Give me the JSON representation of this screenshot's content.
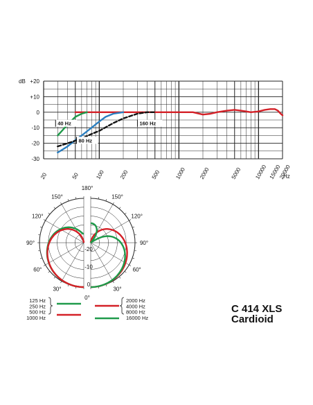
{
  "colors": {
    "red": "#d42027",
    "green": "#1f9a4a",
    "blue": "#2a7fc1",
    "black": "#111111",
    "grid": "#222222"
  },
  "product": {
    "model": "C 414 XLS",
    "pattern": "Cardioid"
  },
  "chart_data": [
    {
      "type": "line",
      "xscale": "log",
      "xlim": [
        20,
        20000
      ],
      "ylim": [
        -30,
        20
      ],
      "y_unit_label": "dB",
      "x_unit_label": "Hz",
      "x_tick_labels": [
        "20",
        "50",
        "100",
        "200",
        "500",
        "1000",
        "2000",
        "5000",
        "10000",
        "15000",
        "20000"
      ],
      "x_ticks": [
        20,
        50,
        100,
        200,
        500,
        1000,
        2000,
        5000,
        10000,
        15000,
        20000
      ],
      "y_tick_labels": [
        "+20",
        "+10",
        "0",
        "-10",
        "-20",
        "-30"
      ],
      "y_ticks": [
        20,
        10,
        0,
        -10,
        -20,
        -30
      ],
      "grid": true,
      "series": [
        {
          "color_key": "red",
          "dash": false,
          "points": [
            [
              50,
              0
            ],
            [
              100,
              0
            ],
            [
              200,
              0
            ],
            [
              500,
              0
            ],
            [
              1000,
              0
            ],
            [
              1500,
              0
            ],
            [
              2000,
              -1.5
            ],
            [
              2500,
              -1
            ],
            [
              3000,
              0
            ],
            [
              4000,
              1
            ],
            [
              5000,
              1.5
            ],
            [
              6000,
              1
            ],
            [
              7000,
              0.5
            ],
            [
              8000,
              0
            ],
            [
              10000,
              0.5
            ],
            [
              12000,
              1.5
            ],
            [
              14000,
              2
            ],
            [
              16000,
              2
            ],
            [
              17500,
              1
            ],
            [
              19000,
              -1
            ],
            [
              20000,
              -2
            ]
          ]
        },
        {
          "color_key": "green",
          "dash": false,
          "points": [
            [
              30,
              -15
            ],
            [
              40,
              -8
            ],
            [
              50,
              -3
            ],
            [
              60,
              -1
            ],
            [
              70,
              0
            ]
          ]
        },
        {
          "color_key": "blue",
          "dash": false,
          "points": [
            [
              30,
              -26
            ],
            [
              40,
              -22
            ],
            [
              50,
              -18
            ],
            [
              60,
              -15
            ],
            [
              80,
              -10
            ],
            [
              100,
              -6
            ],
            [
              120,
              -3
            ],
            [
              150,
              -1
            ],
            [
              200,
              0
            ]
          ]
        },
        {
          "color_key": "black",
          "dash": true,
          "points": [
            [
              30,
              -22
            ],
            [
              40,
              -20
            ],
            [
              60,
              -17
            ],
            [
              80,
              -14
            ],
            [
              100,
              -12
            ],
            [
              150,
              -7
            ],
            [
              200,
              -4
            ],
            [
              300,
              -1
            ],
            [
              400,
              0
            ],
            [
              500,
              0
            ]
          ]
        }
      ],
      "annotations": [
        {
          "text": "40 Hz",
          "f": 30,
          "db": -8
        },
        {
          "text": "80 Hz",
          "f": 55,
          "db": -19
        },
        {
          "text": "160 Hz",
          "f": 320,
          "db": -8
        }
      ]
    },
    {
      "type": "polar",
      "r_min_db": -25,
      "r_max_db": 0,
      "angle_tick_labels": [
        "0°",
        "30°",
        "60°",
        "90°",
        "120°",
        "150°",
        "180°"
      ],
      "angle_ticks": [
        0,
        30,
        60,
        90,
        120,
        150,
        180
      ],
      "radial_tick_labels": [
        "0",
        "-10",
        "-20"
      ],
      "radial_ticks": [
        0,
        -10,
        -20
      ],
      "left_half": [
        {
          "color_key": "green",
          "pattern": "cardioid",
          "back_db": -20
        },
        {
          "color_key": "red",
          "pattern": "cardioid",
          "back_db": -25
        }
      ],
      "right_half": [
        {
          "color_key": "red",
          "pattern": "cardioid",
          "back_db": -25
        },
        {
          "color_key": "green",
          "pattern": "hyper",
          "back_db": -12
        }
      ],
      "legend_left": {
        "frequencies": [
          "125 Hz",
          "250 Hz",
          "500 Hz",
          "1000 Hz"
        ],
        "lines": [
          {
            "color_key": "green"
          },
          {
            "color_key": "red"
          }
        ]
      },
      "legend_right": {
        "frequencies_red": [
          "2000 Hz",
          "4000 Hz",
          "8000 Hz"
        ],
        "frequencies_green": [
          "16000 Hz"
        ]
      }
    }
  ]
}
